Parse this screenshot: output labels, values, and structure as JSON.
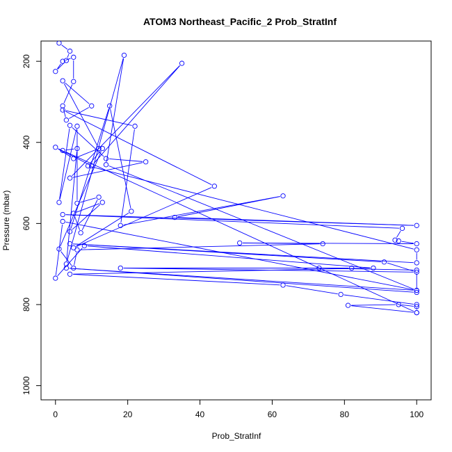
{
  "chart_data": {
    "type": "line",
    "title": "ATOM3 Northeast_Pacific_2 Prob_StratInf",
    "xlabel": "Prob_StratInf",
    "ylabel": "Pressure (mbar)",
    "xlim": [
      -4,
      104
    ],
    "ylim": [
      1035,
      150
    ],
    "y_reversed": true,
    "x_ticks": [
      0,
      20,
      40,
      60,
      80,
      100
    ],
    "y_ticks": [
      200,
      400,
      600,
      800,
      1000
    ],
    "grid": false,
    "legend": "none",
    "colors": {
      "series": "#0000ff",
      "axis": "#000000",
      "background": "#ffffff"
    },
    "series": [
      {
        "x": [
          1,
          4,
          3,
          0,
          2,
          5,
          5,
          2,
          3,
          10,
          2,
          12,
          5,
          0,
          10,
          35,
          4,
          25,
          14,
          4,
          1,
          6,
          6,
          12,
          7,
          5,
          13,
          4,
          15,
          21,
          5,
          44,
          2,
          22,
          18,
          63,
          33,
          100,
          2,
          96,
          94,
          95,
          100,
          51,
          74,
          6,
          5,
          1,
          13,
          9,
          100,
          100,
          4,
          91,
          100,
          18,
          82,
          73,
          100,
          100,
          3,
          100,
          2,
          0,
          8,
          88,
          4,
          63,
          79,
          100,
          100,
          81,
          95,
          100,
          100,
          2,
          6,
          3,
          19,
          14,
          100
        ],
        "y": [
          155,
          175,
          198,
          225,
          200,
          190,
          250,
          310,
          345,
          310,
          248,
          415,
          440,
          412,
          458,
          205,
          488,
          448,
          440,
          358,
          548,
          360,
          550,
          535,
          623,
          575,
          548,
          620,
          310,
          570,
          660,
          508,
          320,
          360,
          605,
          532,
          585,
          605,
          578,
          612,
          641,
          643,
          650,
          648,
          650,
          665,
          710,
          663,
          415,
          458,
          665,
          697,
          650,
          695,
          720,
          710,
          710,
          710,
          715,
          770,
          710,
          765,
          595,
          735,
          655,
          710,
          725,
          752,
          775,
          800,
          820,
          802,
          800,
          805,
          820,
          420,
          415,
          700,
          185,
          455,
          765
        ]
      }
    ]
  }
}
